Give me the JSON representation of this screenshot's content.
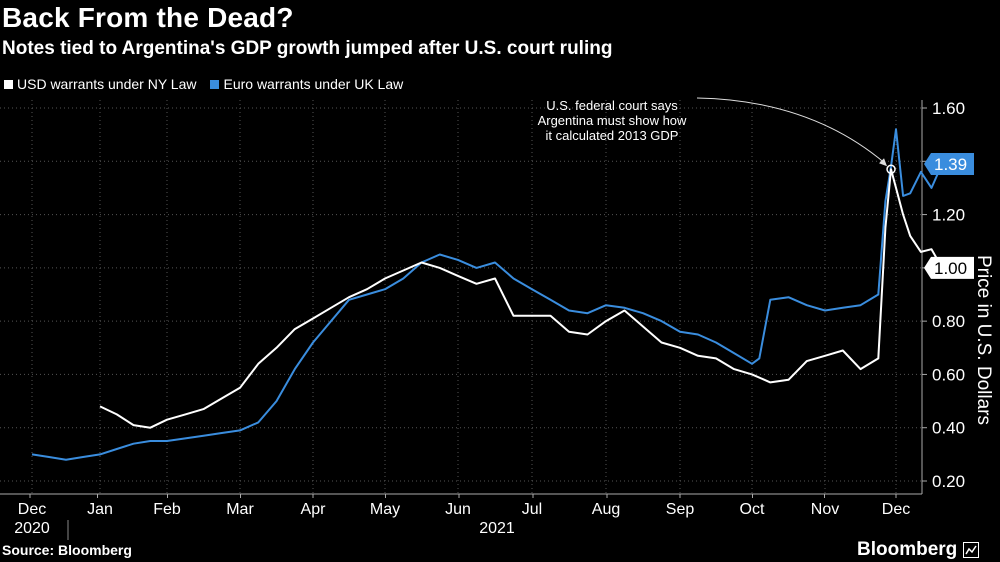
{
  "chart_data": {
    "type": "line",
    "title": "Back From the Dead?",
    "subtitle": "Notes tied to Argentina's GDP growth jumped after U.S. court ruling",
    "ylabel": "Price in U.S. Dollars",
    "xlabel": "",
    "ylim": [
      0.2,
      1.6
    ],
    "yticks": [
      "0.20",
      "0.40",
      "0.60",
      "0.80",
      "1.00",
      "1.20",
      "1.40",
      "1.60"
    ],
    "ytick_values": [
      0.2,
      0.4,
      0.6,
      0.8,
      1.0,
      1.2,
      1.4,
      1.6
    ],
    "x_months": [
      "Dec",
      "Jan",
      "Feb",
      "Mar",
      "Apr",
      "May",
      "Jun",
      "Jul",
      "Aug",
      "Sep",
      "Oct",
      "Nov",
      "Dec"
    ],
    "x_years": [
      "2020",
      "2021"
    ],
    "grid": true,
    "annotation": "U.S. federal court says Argentina must show how it calculated 2013 GDP",
    "series": [
      {
        "name": "USD warrants under NY Law",
        "color": "#ffffff",
        "last_label": "1.00",
        "x": [
          1.0,
          1.25,
          1.5,
          1.75,
          2.0,
          2.25,
          2.5,
          2.75,
          3.0,
          3.25,
          3.5,
          3.75,
          4.0,
          4.25,
          4.5,
          4.75,
          5.0,
          5.25,
          5.5,
          5.75,
          6.0,
          6.25,
          6.5,
          6.75,
          7.0,
          7.25,
          7.5,
          7.75,
          8.0,
          8.25,
          8.5,
          8.75,
          9.0,
          9.25,
          9.5,
          9.75,
          10.0,
          10.25,
          10.5,
          10.75,
          11.0,
          11.25,
          11.5,
          11.75,
          11.85,
          11.93,
          12.0,
          12.1,
          12.2,
          12.35,
          12.5,
          12.65
        ],
        "values": [
          0.48,
          0.45,
          0.41,
          0.4,
          0.43,
          0.45,
          0.47,
          0.51,
          0.55,
          0.64,
          0.7,
          0.77,
          0.81,
          0.85,
          0.89,
          0.92,
          0.96,
          0.99,
          1.02,
          1.0,
          0.97,
          0.94,
          0.96,
          0.82,
          0.82,
          0.82,
          0.76,
          0.75,
          0.8,
          0.84,
          0.78,
          0.72,
          0.7,
          0.67,
          0.66,
          0.62,
          0.6,
          0.57,
          0.58,
          0.65,
          0.67,
          0.69,
          0.62,
          0.66,
          1.15,
          1.37,
          1.3,
          1.2,
          1.12,
          1.06,
          1.07,
          1.0
        ]
      },
      {
        "name": "Euro warrants under UK Law",
        "color": "#3a8dde",
        "last_label": "1.39",
        "x": [
          0.0,
          0.25,
          0.5,
          0.75,
          1.0,
          1.25,
          1.5,
          1.75,
          2.0,
          2.25,
          2.5,
          2.75,
          3.0,
          3.25,
          3.5,
          3.75,
          4.0,
          4.25,
          4.5,
          4.75,
          5.0,
          5.25,
          5.5,
          5.75,
          6.0,
          6.25,
          6.5,
          6.75,
          7.0,
          7.25,
          7.5,
          7.75,
          8.0,
          8.25,
          8.5,
          8.75,
          9.0,
          9.25,
          9.5,
          9.75,
          10.0,
          10.1,
          10.25,
          10.5,
          10.75,
          11.0,
          11.25,
          11.5,
          11.75,
          11.85,
          11.93,
          12.0,
          12.1,
          12.2,
          12.35,
          12.5,
          12.65
        ],
        "values": [
          0.3,
          0.29,
          0.28,
          0.29,
          0.3,
          0.32,
          0.34,
          0.35,
          0.35,
          0.36,
          0.37,
          0.38,
          0.39,
          0.42,
          0.5,
          0.62,
          0.72,
          0.8,
          0.88,
          0.9,
          0.92,
          0.96,
          1.02,
          1.05,
          1.03,
          1.0,
          1.02,
          0.96,
          0.92,
          0.88,
          0.84,
          0.83,
          0.86,
          0.85,
          0.83,
          0.8,
          0.76,
          0.75,
          0.72,
          0.68,
          0.64,
          0.66,
          0.88,
          0.89,
          0.86,
          0.84,
          0.85,
          0.86,
          0.9,
          1.25,
          1.38,
          1.52,
          1.27,
          1.28,
          1.36,
          1.3,
          1.39
        ]
      }
    ]
  },
  "source": "Source: Bloomberg",
  "brand": "Bloomberg"
}
